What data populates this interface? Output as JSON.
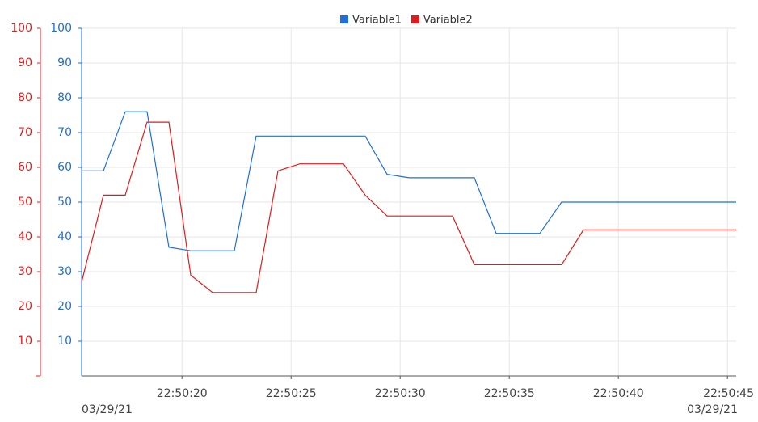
{
  "chart_data": {
    "type": "line",
    "x": [
      15.4,
      16.4,
      17.4,
      18.4,
      19.4,
      20.4,
      21.4,
      22.4,
      23.4,
      24.4,
      25.4,
      26.4,
      27.4,
      28.4,
      29.4,
      30.4,
      31.4,
      32.4,
      33.4,
      34.4,
      35.4,
      36.4,
      37.4,
      38.4,
      39.4,
      40.4,
      41.4,
      42.4,
      43.4,
      44.4,
      45.4
    ],
    "series": [
      {
        "name": "Variable1",
        "color": "#1e6fd9",
        "axis": "y",
        "values": [
          59,
          59,
          76,
          76,
          37,
          36,
          36,
          36,
          69,
          69,
          69,
          69,
          69,
          69,
          58,
          57,
          57,
          57,
          57,
          41,
          41,
          41,
          50,
          50,
          50,
          50,
          50,
          50,
          50,
          50,
          50
        ]
      },
      {
        "name": "Variable2",
        "color": "#e01b1b",
        "axis": "y2",
        "values": [
          27,
          52,
          52,
          73,
          73,
          29,
          24,
          24,
          24,
          59,
          61,
          61,
          61,
          52,
          46,
          46,
          46,
          46,
          32,
          32,
          32,
          32,
          32,
          42,
          42,
          42,
          42,
          42,
          42,
          42,
          42
        ]
      }
    ],
    "xlim": [
      15.4,
      45.4
    ],
    "xticks": [
      {
        "value": 20,
        "label": "22:50:20"
      },
      {
        "value": 25,
        "label": "22:50:25"
      },
      {
        "value": 30,
        "label": "22:50:30"
      },
      {
        "value": 35,
        "label": "22:50:35"
      },
      {
        "value": 40,
        "label": "22:50:40"
      },
      {
        "value": 45,
        "label": "22:50:45"
      }
    ],
    "date_labels": [
      "03/29/21",
      "03/29/21"
    ],
    "ylim": [
      0,
      100
    ],
    "yticks": [
      10,
      20,
      30,
      40,
      50,
      60,
      70,
      80,
      90,
      100
    ],
    "y2lim": [
      0,
      100
    ],
    "y2ticks": [
      10,
      20,
      30,
      40,
      50,
      60,
      70,
      80,
      90,
      100
    ],
    "grid": true,
    "legend": "top"
  }
}
